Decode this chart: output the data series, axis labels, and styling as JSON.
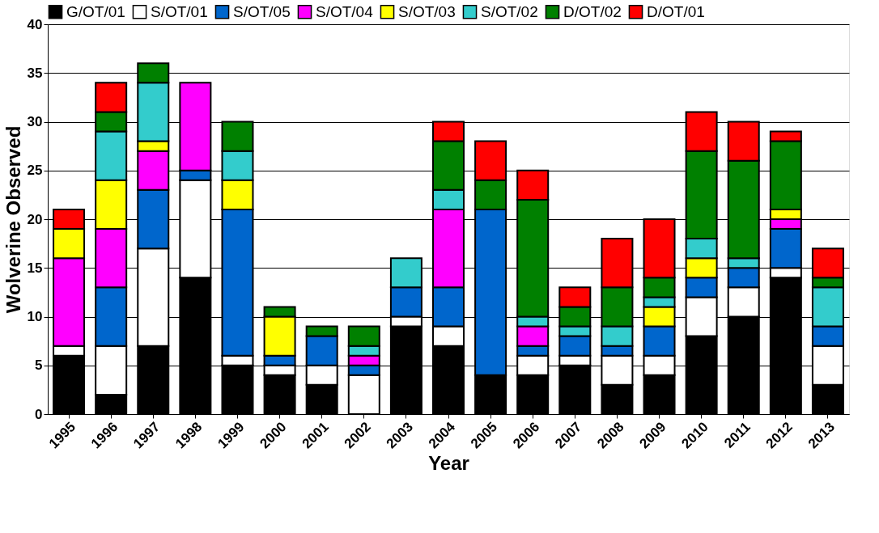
{
  "chart_data": {
    "type": "bar",
    "stacked": true,
    "xlabel": "Year",
    "ylabel": "Wolverine Observed",
    "categories": [
      "1995",
      "1996",
      "1997",
      "1998",
      "1999",
      "2000",
      "2001",
      "2002",
      "2003",
      "2004",
      "2005",
      "2006",
      "2007",
      "2008",
      "2009",
      "2010",
      "2011",
      "2012",
      "2013"
    ],
    "series": [
      {
        "name": "G/OT/01",
        "color": "#000000",
        "values": [
          6,
          2,
          7,
          14,
          5,
          4,
          3,
          null,
          9,
          7,
          4,
          4,
          5,
          3,
          4,
          8,
          10,
          14,
          3
        ]
      },
      {
        "name": "S/OT/01",
        "color": "#ffffff",
        "values": [
          1,
          5,
          10,
          10,
          1,
          1,
          2,
          4,
          1,
          2,
          null,
          2,
          1,
          3,
          2,
          4,
          3,
          1,
          4
        ]
      },
      {
        "name": "S/OT/05",
        "color": "#0066cc",
        "values": [
          null,
          6,
          6,
          1,
          15,
          1,
          3,
          1,
          3,
          4,
          17,
          1,
          2,
          1,
          3,
          2,
          2,
          4,
          2
        ]
      },
      {
        "name": "S/OT/04",
        "color": "#ff00ff",
        "values": [
          9,
          6,
          4,
          9,
          null,
          null,
          null,
          1,
          null,
          8,
          null,
          2,
          null,
          null,
          null,
          null,
          null,
          1,
          null
        ]
      },
      {
        "name": "S/OT/03",
        "color": "#ffff00",
        "values": [
          3,
          5,
          1,
          null,
          3,
          4,
          null,
          null,
          null,
          null,
          null,
          null,
          null,
          null,
          2,
          2,
          null,
          1,
          null
        ]
      },
      {
        "name": "S/OT/02",
        "color": "#33cccc",
        "values": [
          null,
          5,
          6,
          null,
          3,
          null,
          null,
          1,
          3,
          2,
          null,
          1,
          1,
          2,
          1,
          2,
          1,
          null,
          4
        ]
      },
      {
        "name": "D/OT/02",
        "color": "#008000",
        "values": [
          null,
          2,
          2,
          null,
          3,
          1,
          1,
          2,
          null,
          5,
          3,
          12,
          2,
          4,
          2,
          9,
          10,
          7,
          1
        ]
      },
      {
        "name": "D/OT/01",
        "color": "#ff0000",
        "values": [
          2,
          3,
          null,
          null,
          null,
          null,
          null,
          null,
          null,
          2,
          4,
          3,
          2,
          5,
          6,
          4,
          4,
          1,
          3
        ]
      }
    ],
    "ylim": [
      0,
      40
    ],
    "yticks": [
      0,
      5,
      10,
      15,
      20,
      25,
      30,
      35,
      40
    ],
    "grid": "y",
    "legend": "top"
  }
}
